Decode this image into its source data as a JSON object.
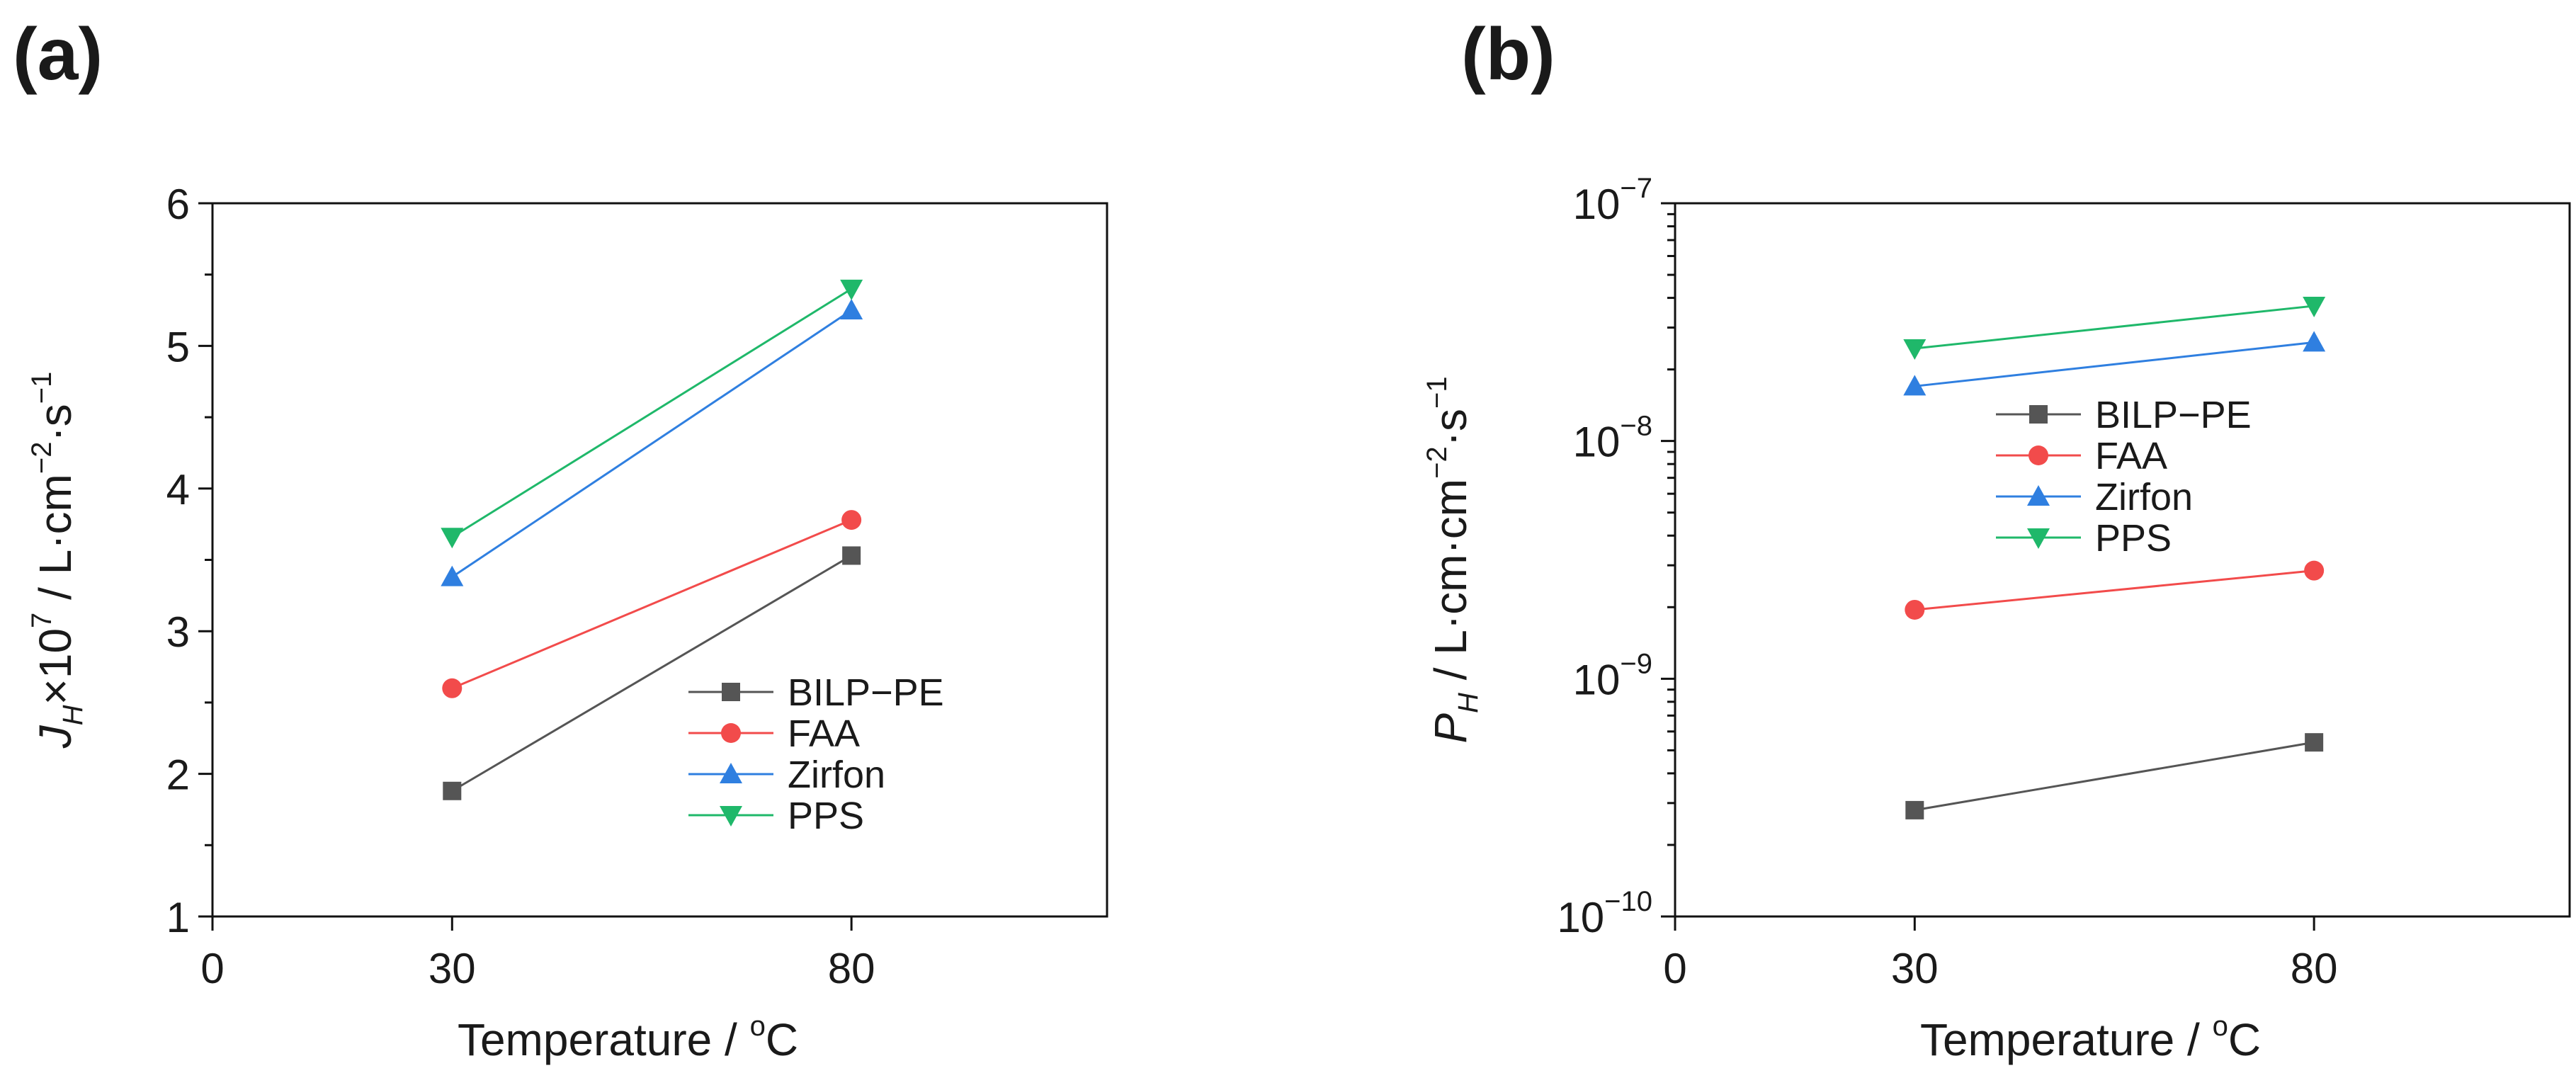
{
  "chart_data": [
    {
      "type": "line",
      "panel_label": "(a)",
      "x": [
        30,
        80
      ],
      "xlim": [
        0,
        112
      ],
      "xticks": [
        "0",
        "30",
        "80"
      ],
      "xtick_values": [
        0,
        30,
        80
      ],
      "xlabel": "Temperature / ",
      "xlabel_sup": "o",
      "xlabel_tail": "C",
      "yscale": "linear",
      "ylim": [
        1,
        6
      ],
      "yticks": [
        "1",
        "2",
        "3",
        "4",
        "5",
        "6"
      ],
      "ytick_values": [
        1,
        2,
        3,
        4,
        5,
        6
      ],
      "ylabel": {
        "symbol": "J",
        "sub": "H",
        "times": "×10",
        "exp": "7",
        "unit": " / L·cm",
        "unit_exp1": "−2",
        "mid": "·s",
        "unit_exp2": "−1"
      },
      "legend_position": "center-right",
      "series": [
        {
          "name": "BILP−PE",
          "values": [
            1.88,
            3.53
          ],
          "color": "#555555",
          "marker": "square"
        },
        {
          "name": "FAA",
          "values": [
            2.6,
            3.78
          ],
          "color": "#f24b4b",
          "marker": "circle"
        },
        {
          "name": "Zirfon",
          "values": [
            3.38,
            5.25
          ],
          "color": "#2f7fe0",
          "marker": "triangle-up"
        },
        {
          "name": "PPS",
          "values": [
            3.66,
            5.4
          ],
          "color": "#1fb86a",
          "marker": "triangle-down"
        }
      ]
    },
    {
      "type": "line",
      "panel_label": "(b)",
      "x": [
        30,
        80
      ],
      "xlim": [
        0,
        112
      ],
      "xticks": [
        "0",
        "30",
        "80"
      ],
      "xtick_values": [
        0,
        30,
        80
      ],
      "xlabel": "Temperature / ",
      "xlabel_sup": "o",
      "xlabel_tail": "C",
      "yscale": "log",
      "ylim": [
        1e-10,
        1e-07
      ],
      "yticks": [
        {
          "base": "10",
          "exp": "−7"
        },
        {
          "base": "10",
          "exp": "−8"
        },
        {
          "base": "10",
          "exp": "−9"
        },
        {
          "base": "10",
          "exp": "−10"
        }
      ],
      "ytick_values": [
        1e-07,
        1e-08,
        1e-09,
        1e-10
      ],
      "ylabel": {
        "symbol": "P",
        "sub": "H",
        "unit": " / L·cm·cm",
        "unit_exp1": "−2",
        "mid": "·s",
        "unit_exp2": "−1"
      },
      "legend_position": "upper-center",
      "series": [
        {
          "name": "BILP−PE",
          "values": [
            2.8e-10,
            5.4e-10
          ],
          "color": "#555555",
          "marker": "square"
        },
        {
          "name": "FAA",
          "values": [
            1.95e-09,
            2.85e-09
          ],
          "color": "#f24b4b",
          "marker": "circle"
        },
        {
          "name": "Zirfon",
          "values": [
            1.7e-08,
            2.6e-08
          ],
          "color": "#2f7fe0",
          "marker": "triangle-up"
        },
        {
          "name": "PPS",
          "values": [
            2.45e-08,
            3.7e-08
          ],
          "color": "#1fb86a",
          "marker": "triangle-down"
        }
      ]
    }
  ]
}
